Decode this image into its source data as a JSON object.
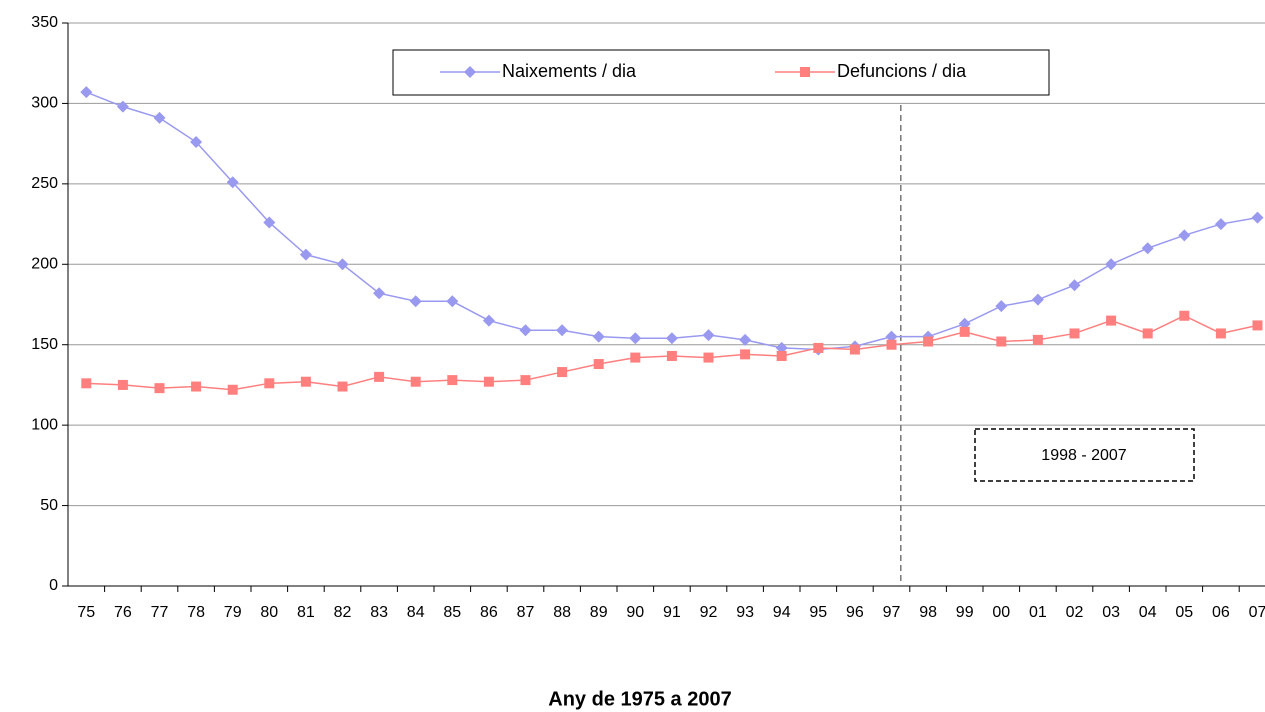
{
  "chart_data": {
    "type": "line",
    "x_label": "Any de 1975 a 2007",
    "annotation": "1998 - 2007",
    "categories": [
      "75",
      "76",
      "77",
      "78",
      "79",
      "80",
      "81",
      "82",
      "83",
      "84",
      "85",
      "86",
      "87",
      "88",
      "89",
      "90",
      "91",
      "92",
      "93",
      "94",
      "95",
      "96",
      "97",
      "98",
      "99",
      "00",
      "01",
      "02",
      "03",
      "04",
      "05",
      "06",
      "07"
    ],
    "series": [
      {
        "name": "Naixements / dia",
        "color": "#9999f0",
        "marker": "diamond",
        "values": [
          307,
          298,
          291,
          276,
          251,
          226,
          206,
          200,
          182,
          177,
          177,
          165,
          159,
          159,
          155,
          154,
          154,
          156,
          153,
          148,
          147,
          149,
          155,
          155,
          163,
          174,
          178,
          187,
          200,
          210,
          218,
          225,
          229
        ]
      },
      {
        "name": "Defuncions / dia",
        "color": "#ff7f7f",
        "marker": "square",
        "values": [
          126,
          125,
          123,
          124,
          122,
          126,
          127,
          124,
          130,
          127,
          128,
          127,
          128,
          133,
          138,
          142,
          143,
          142,
          144,
          143,
          148,
          147,
          150,
          152,
          158,
          152,
          153,
          157,
          165,
          157,
          168,
          157,
          162
        ]
      }
    ],
    "ylim": [
      0,
      350
    ],
    "yticks": [
      0,
      50,
      100,
      150,
      200,
      250,
      300,
      350
    ],
    "grid": true
  }
}
